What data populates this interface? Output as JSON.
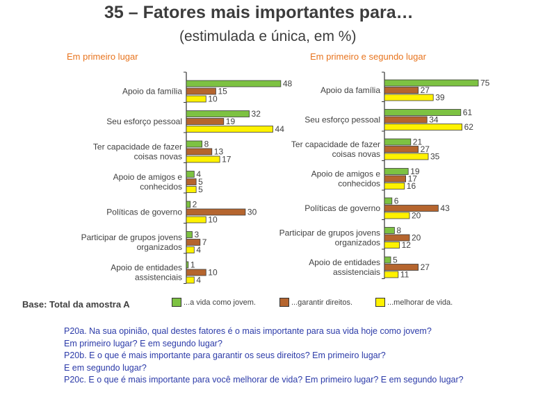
{
  "title": "35 – Fatores mais importantes para…",
  "subtitle": "(estimulada e única, em %)",
  "colors": {
    "green": "#7dc242",
    "brown": "#b5652e",
    "yellow": "#fff200",
    "accent": "#e8741e",
    "question": "#2b3aa8"
  },
  "chart_data": [
    {
      "type": "bar",
      "orientation": "horizontal",
      "title": "Em primeiro lugar",
      "categories": [
        [
          "Apoio da família"
        ],
        [
          "Seu esforço pessoal"
        ],
        [
          "Ter capacidade de fazer",
          "coisas novas"
        ],
        [
          "Apoio de amigos e",
          "conhecidos"
        ],
        [
          "Políticas de governo"
        ],
        [
          "Participar de grupos jovens",
          "organizados"
        ],
        [
          "Apoio de entidades",
          "assistenciais"
        ]
      ],
      "series": [
        {
          "name": "...a vida como jovem.",
          "color": "#7dc242",
          "values": [
            48,
            32,
            8,
            4,
            2,
            3,
            1
          ]
        },
        {
          "name": "...garantir direitos.",
          "color": "#b5652e",
          "values": [
            15,
            19,
            13,
            5,
            30,
            7,
            10
          ]
        },
        {
          "name": "...melhorar de vida.",
          "color": "#fff200",
          "values": [
            10,
            44,
            17,
            5,
            10,
            4,
            4
          ]
        }
      ],
      "xlim": [
        0,
        100
      ]
    },
    {
      "type": "bar",
      "orientation": "horizontal",
      "title": "Em primeiro e segundo lugar",
      "categories": [
        [
          "Apoio da família"
        ],
        [
          "Seu esforço pessoal"
        ],
        [
          "Ter capacidade de fazer",
          "coisas novas"
        ],
        [
          "Apoio de amigos e",
          "conhecidos"
        ],
        [
          "Políticas de governo"
        ],
        [
          "Participar de grupos jovens",
          "organizados"
        ],
        [
          "Apoio de entidades",
          "assistenciais"
        ]
      ],
      "series": [
        {
          "name": "...a vida como jovem.",
          "color": "#7dc242",
          "values": [
            75,
            61,
            21,
            19,
            6,
            8,
            5
          ]
        },
        {
          "name": "...garantir direitos.",
          "color": "#b5652e",
          "values": [
            27,
            34,
            27,
            17,
            43,
            20,
            27
          ]
        },
        {
          "name": "...melhorar de vida.",
          "color": "#fff200",
          "values": [
            39,
            62,
            35,
            16,
            20,
            12,
            11
          ]
        }
      ],
      "xlim": [
        0,
        100
      ]
    }
  ],
  "base_label": "Base: Total da amostra A",
  "legend": [
    {
      "label": "...a vida como jovem.",
      "color": "#7dc242"
    },
    {
      "label": "...garantir direitos.",
      "color": "#b5652e"
    },
    {
      "label": "...melhorar de vida.",
      "color": "#fff200"
    }
  ],
  "questions": [
    "P20a. Na sua opinião, qual destes fatores é o mais importante para sua vida hoje como jovem?",
    "Em primeiro lugar? E em segundo lugar?",
    "P20b. E o que é mais importante para garantir os seus direitos? Em primeiro lugar?",
    "E em segundo lugar?",
    "P20c. E o que é mais importante para você melhorar de vida? Em primeiro lugar? E em segundo lugar?"
  ]
}
